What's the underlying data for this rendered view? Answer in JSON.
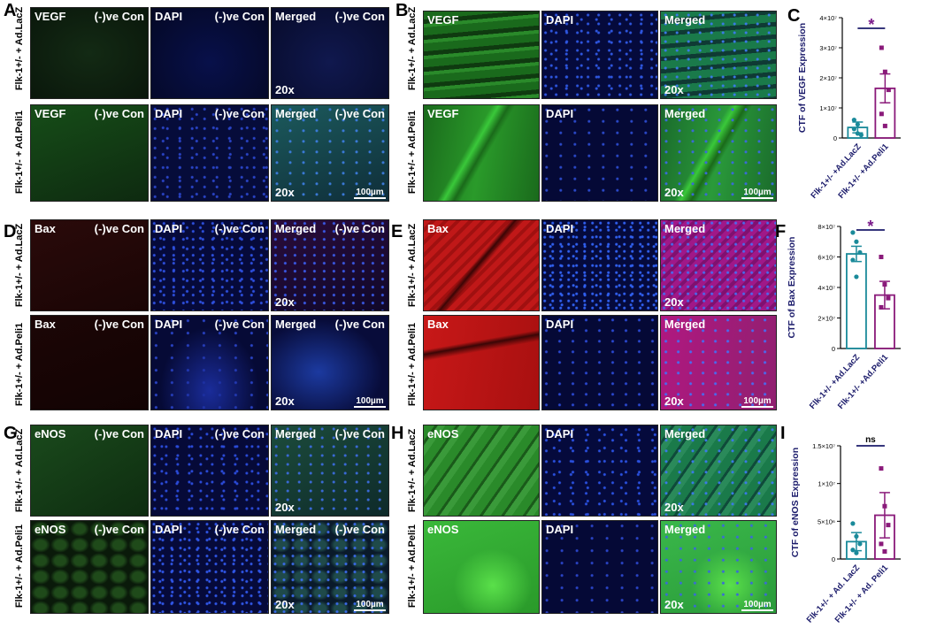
{
  "panel_letters": [
    "A",
    "B",
    "C",
    "D",
    "E",
    "F",
    "G",
    "H",
    "I"
  ],
  "tile_labels": {
    "vegf": "VEGF",
    "bax": "Bax",
    "enos": "eNOS",
    "dapi": "DAPI",
    "merged": "Merged",
    "neg_con": "(-)ve Con",
    "mag": "20x",
    "scale": "100µm"
  },
  "row_labels": {
    "lacz_a": "Flk-1+/- + Ad.LacZ",
    "peli_a": "Flk-1+/- + Ad.Peli1",
    "lacz_b": "Flk-1+/- + Ad.LacZ",
    "peli_b": "Flk-1+/- + Ad.Peli1",
    "lacz_d": "Flk-1+/- + Ad.LacZ",
    "peli_d": "Flk-1+/- + Ad.Peli1",
    "lacz_e": "Flk-1+/- + Ad.LacZ",
    "peli_e": "Flk-1+/- + Ad.Peli1",
    "lacz_g": "Flk-1+/- + Ad.LacZ",
    "peli_g": "Flk-1+/- + Ad.Peli1",
    "lacz_h": "Flk-1+/- + Ad.LacZ",
    "peli_h": "Flk-1+/- + Ad.Peli1"
  },
  "colors": {
    "green_dark": "#0f2a10",
    "green_bright": "#2a9a2a",
    "red_dark": "#2a0808",
    "red_bright": "#c01818",
    "blue_dark": "#060a3a",
    "blue_dots": "#2a4ad8",
    "merged_green": "#1f6a5a",
    "merged_red": "#8a1a6a",
    "teal": "#1a8a9a",
    "purple": "#8a1a7a",
    "sig_purple": "#7a1a8a",
    "navy": "#1a1a6a"
  },
  "chart_data": [
    {
      "type": "bar",
      "panel": "C",
      "ylabel": "CTF of VEGF Expression",
      "categories": [
        "Flk-1+/- +Ad.LacZ",
        "Flk-1+/- +Ad.Peli1"
      ],
      "values": [
        3500000,
        16500000
      ],
      "errors": [
        1800000,
        4800000
      ],
      "points": [
        [
          6000000,
          1500000,
          1000000,
          3000000,
          4500000
        ],
        [
          30000000,
          22000000,
          16000000,
          8000000,
          4000000
        ]
      ],
      "ylim": [
        0,
        40000000
      ],
      "yticks": [
        "0",
        "1×10⁷",
        "2×10⁷",
        "3×10⁷",
        "4×10⁷"
      ],
      "significance": "*"
    },
    {
      "type": "bar",
      "panel": "F",
      "ylabel": "CTF of Bax Expression",
      "categories": [
        "Flk-1+/- +Ad.LacZ",
        "Flk-1+/- +Ad.Peli1"
      ],
      "values": [
        62000000,
        35000000
      ],
      "errors": [
        5000000,
        9000000
      ],
      "points": [
        [
          76000000,
          70000000,
          63000000,
          58000000,
          47000000
        ],
        [
          60000000,
          42000000,
          33000000,
          27000000
        ]
      ],
      "ylim": [
        0,
        80000000
      ],
      "yticks": [
        "0",
        "2×10⁷",
        "4×10⁷",
        "6×10⁷",
        "8×10⁷"
      ],
      "significance": "*"
    },
    {
      "type": "bar",
      "panel": "I",
      "ylabel": "CTF of eNOS Expression",
      "categories": [
        "Flk-1+/- + Ad. LacZ",
        "Flk-1+/- + Ad. Peli1"
      ],
      "values": [
        2300000,
        5800000
      ],
      "errors": [
        1200000,
        3000000
      ],
      "points": [
        [
          4700000,
          3000000,
          2000000,
          1200000,
          800000
        ],
        [
          12000000,
          7000000,
          4500000,
          2000000,
          1000000
        ]
      ],
      "ylim": [
        0,
        15000000
      ],
      "yticks": [
        "0",
        "5×10⁶",
        "1×10⁷",
        "1.5×10⁷"
      ],
      "significance": "ns"
    }
  ]
}
